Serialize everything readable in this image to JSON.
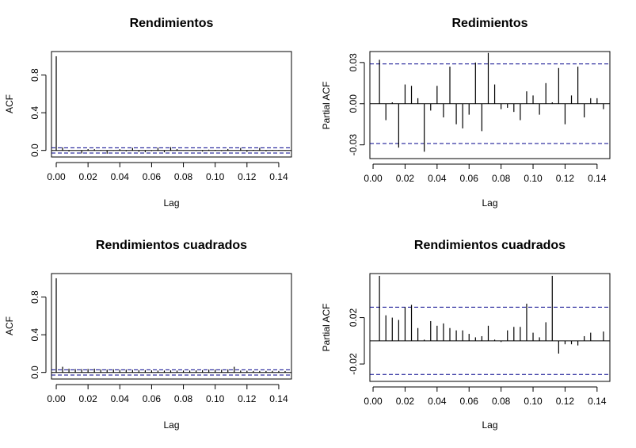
{
  "figure": {
    "background": "#ffffff",
    "confidence_band_color": "#00008b",
    "line_color": "#000000"
  },
  "chart_data": [
    {
      "type": "bar",
      "subtype": "acf",
      "title": "Rendimientos",
      "xlabel": "Lag",
      "ylabel": "ACF",
      "xlim": [
        -0.003,
        0.148
      ],
      "ylim": [
        -0.07,
        1.05
      ],
      "xticks": [
        "0.00",
        "0.02",
        "0.04",
        "0.06",
        "0.08",
        "0.10",
        "0.12",
        "0.14"
      ],
      "yticks": [
        "0.0",
        "0.4",
        "0.8"
      ],
      "conf_limit": 0.028,
      "grid": false,
      "lags": [
        0,
        0.004,
        0.008,
        0.012,
        0.016,
        0.02,
        0.024,
        0.028,
        0.032,
        0.036,
        0.04,
        0.044,
        0.048,
        0.052,
        0.056,
        0.06,
        0.064,
        0.068,
        0.072,
        0.076,
        0.08,
        0.084,
        0.088,
        0.092,
        0.096,
        0.1,
        0.104,
        0.108,
        0.112,
        0.116,
        0.12,
        0.124,
        0.128,
        0.132,
        0.136,
        0.14,
        0.144
      ],
      "values": [
        1.0,
        0.032,
        -0.012,
        0.001,
        -0.032,
        0.014,
        0.013,
        0.004,
        -0.035,
        -0.005,
        0.013,
        -0.01,
        0.027,
        -0.015,
        -0.018,
        -0.008,
        0.03,
        -0.02,
        0.035,
        0.014,
        -0.004,
        -0.003,
        -0.006,
        -0.012,
        0.008,
        0.006,
        -0.008,
        0.015,
        0.001,
        0.026,
        -0.015,
        0.006,
        0.027,
        -0.01,
        0.004,
        0.004,
        -0.004
      ]
    },
    {
      "type": "bar",
      "subtype": "pacf",
      "title": "Redimientos",
      "xlabel": "Lag",
      "ylabel": "Partial ACF",
      "xlim": [
        -0.002,
        0.148
      ],
      "ylim": [
        -0.04,
        0.038
      ],
      "xticks": [
        "0.00",
        "0.02",
        "0.04",
        "0.06",
        "0.08",
        "0.10",
        "0.12",
        "0.14"
      ],
      "yticks": [
        "-0.03",
        "0.00",
        "0.03"
      ],
      "conf_limit": 0.029,
      "grid": false,
      "lags": [
        0.004,
        0.008,
        0.012,
        0.016,
        0.02,
        0.024,
        0.028,
        0.032,
        0.036,
        0.04,
        0.044,
        0.048,
        0.052,
        0.056,
        0.06,
        0.064,
        0.068,
        0.072,
        0.076,
        0.08,
        0.084,
        0.088,
        0.092,
        0.096,
        0.1,
        0.104,
        0.108,
        0.112,
        0.116,
        0.12,
        0.124,
        0.128,
        0.132,
        0.136,
        0.14,
        0.144
      ],
      "values": [
        0.032,
        -0.012,
        0.001,
        -0.032,
        0.014,
        0.013,
        0.004,
        -0.035,
        -0.005,
        0.013,
        -0.01,
        0.027,
        -0.015,
        -0.018,
        -0.008,
        0.03,
        -0.02,
        0.037,
        0.014,
        -0.004,
        -0.003,
        -0.006,
        -0.012,
        0.009,
        0.006,
        -0.008,
        0.015,
        0.001,
        0.026,
        -0.015,
        0.006,
        0.027,
        -0.01,
        0.004,
        0.004,
        -0.004
      ]
    },
    {
      "type": "bar",
      "subtype": "acf",
      "title": "Rendimientos cuadrados",
      "xlabel": "Lag",
      "ylabel": "ACF",
      "xlim": [
        -0.003,
        0.148
      ],
      "ylim": [
        -0.07,
        1.05
      ],
      "xticks": [
        "0.00",
        "0.02",
        "0.04",
        "0.06",
        "0.08",
        "0.10",
        "0.12",
        "0.14"
      ],
      "yticks": [
        "0.0",
        "0.4",
        "0.8"
      ],
      "conf_limit": 0.028,
      "grid": false,
      "lags": [
        0,
        0.004,
        0.008,
        0.012,
        0.016,
        0.02,
        0.024,
        0.028,
        0.032,
        0.036,
        0.04,
        0.044,
        0.048,
        0.052,
        0.056,
        0.06,
        0.064,
        0.068,
        0.072,
        0.076,
        0.08,
        0.084,
        0.088,
        0.092,
        0.096,
        0.1,
        0.104,
        0.108,
        0.112,
        0.116,
        0.12,
        0.124,
        0.128,
        0.132,
        0.136,
        0.14,
        0.144
      ],
      "values": [
        1.0,
        0.06,
        0.04,
        0.035,
        0.035,
        0.037,
        0.04,
        0.032,
        0.03,
        0.033,
        0.028,
        0.03,
        0.027,
        0.025,
        0.024,
        0.022,
        0.02,
        0.02,
        0.022,
        0.02,
        0.02,
        0.02,
        0.022,
        0.024,
        0.03,
        0.03,
        0.028,
        0.032,
        0.06,
        0.02,
        0.018,
        0.016,
        0.016,
        0.016,
        0.017,
        0.016,
        0.015
      ]
    },
    {
      "type": "bar",
      "subtype": "pacf",
      "title": "Rendimientos cuadrados",
      "xlabel": "Lag",
      "ylabel": "Partial ACF",
      "xlim": [
        -0.002,
        0.148
      ],
      "ylim": [
        -0.035,
        0.058
      ],
      "xticks": [
        "0.00",
        "0.02",
        "0.04",
        "0.06",
        "0.08",
        "0.10",
        "0.12",
        "0.14"
      ],
      "yticks": [
        "-0.02",
        "0.02"
      ],
      "conf_limit": 0.029,
      "grid": false,
      "lags": [
        0.004,
        0.008,
        0.012,
        0.016,
        0.02,
        0.024,
        0.028,
        0.032,
        0.036,
        0.04,
        0.044,
        0.048,
        0.052,
        0.056,
        0.06,
        0.064,
        0.068,
        0.072,
        0.076,
        0.08,
        0.084,
        0.088,
        0.092,
        0.096,
        0.1,
        0.104,
        0.108,
        0.112,
        0.116,
        0.12,
        0.124,
        0.128,
        0.132,
        0.136,
        0.14,
        0.144
      ],
      "values": [
        0.056,
        0.022,
        0.02,
        0.018,
        0.029,
        0.031,
        0.011,
        0.001,
        0.017,
        0.013,
        0.015,
        0.011,
        0.009,
        0.009,
        0.006,
        0.003,
        0.004,
        0.013,
        0.001,
        -0.001,
        0.009,
        0.012,
        0.012,
        0.032,
        0.007,
        0.003,
        0.016,
        0.056,
        -0.011,
        -0.003,
        -0.003,
        -0.004,
        0.004,
        0.007,
        0.0,
        0.008
      ]
    }
  ]
}
